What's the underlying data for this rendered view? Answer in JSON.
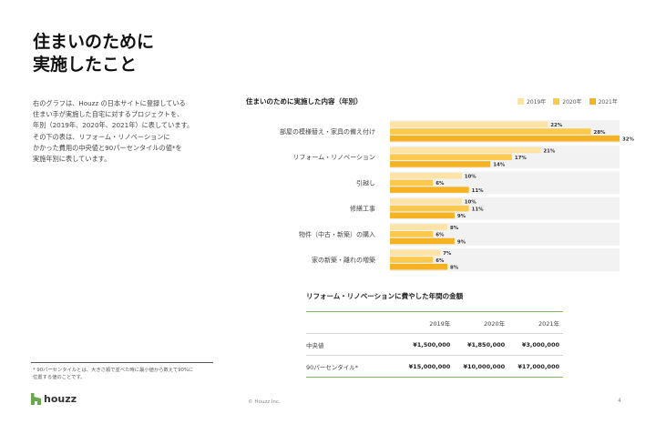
{
  "page": {
    "title": "住まいのために\n実施したこと",
    "description": "右のグラフは、Houzz の日本サイトに登録している\n住まい手が実施した自宅に対するプロジェクトを、\n年別（2019年、2020年、2021年）に表しています。\nその下の表は、リフォーム・リノベーションに\nかかった費用の中央値と90パーセンタイルの値*を\n実施年別に表しています。",
    "footnote": "* 90パーセンタイルとは、大きさ順で並べた時に最小値から数えて90%に\n位置する値のことです。",
    "logo_text": "houzz",
    "copyright": "© Houzz Inc.",
    "page_number": "4"
  },
  "colors": {
    "2019年": "#fde3a6",
    "2020年": "#fcc94f",
    "2021年": "#f5b324",
    "row_background": "#f2f2f2",
    "table_rule": "#7db85a",
    "logo": "#6aa84f"
  },
  "chart_data": {
    "type": "bar",
    "orientation": "horizontal",
    "title": "住まいのために実施した内容（年別）",
    "categories": [
      "部屋の模様替え・家具の備え付け",
      "リフォーム・リノベーション",
      "引越し",
      "修繕工事",
      "物件（中古・新築）の購入",
      "家の新築・離れの増築"
    ],
    "series": [
      {
        "name": "2019年",
        "values": [
          22,
          21,
          10,
          10,
          8,
          7
        ],
        "labels": [
          "22%",
          "21%",
          "10%",
          "10%",
          "8%",
          "7%"
        ]
      },
      {
        "name": "2020年",
        "values": [
          28,
          17,
          6,
          11,
          6,
          6
        ],
        "labels": [
          "28%",
          "17%",
          "6%",
          "11%",
          "6%",
          "6%"
        ]
      },
      {
        "name": "2021年",
        "values": [
          32,
          14,
          11,
          9,
          9,
          8
        ],
        "labels": [
          "32%",
          "14%",
          "11%",
          "9%",
          "9%",
          "8%"
        ]
      }
    ],
    "xlim": [
      0,
      32
    ],
    "legend_position": "top-right",
    "grid": false
  },
  "cost_table": {
    "title": "リフォーム・リノベーションに費やした年間の金額",
    "columns": [
      "2019年",
      "2020年",
      "2021年"
    ],
    "rows": [
      {
        "label": "中央値",
        "values": [
          "¥1,500,000",
          "¥1,850,000",
          "¥3,000,000"
        ]
      },
      {
        "label": "90パーセンタイル*",
        "values": [
          "¥15,000,000",
          "¥10,000,000",
          "¥17,000,000"
        ]
      }
    ]
  }
}
